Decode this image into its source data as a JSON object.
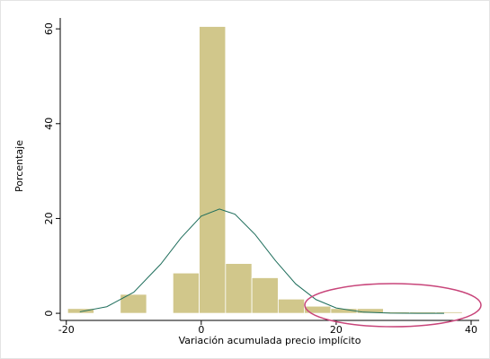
{
  "chart_data": {
    "type": "histogram",
    "xlabel": "Variación acumulada precio implícito",
    "ylabel": "Porcentaje",
    "bins": [
      -19.8,
      -15.9,
      -12.0,
      -8.1,
      -4.2,
      -0.3,
      3.6,
      7.5,
      11.4,
      15.3,
      19.2,
      23.1,
      27.0,
      30.9,
      34.8,
      38.7
    ],
    "values": [
      1,
      0,
      4,
      0,
      8.5,
      60.5,
      10.5,
      7.5,
      3,
      1.5,
      1,
      1,
      0.3,
      0.3,
      0.3
    ],
    "color": "#d1c78b",
    "curve": {
      "color": "#1f6e5c",
      "x": [
        -18,
        -14,
        -10,
        -6,
        -3,
        0,
        2.7,
        5,
        8,
        11,
        14,
        17,
        20,
        24,
        28,
        32,
        36
      ],
      "y": [
        0.31,
        1.39,
        4.44,
        10.38,
        15.9,
        20.5,
        22,
        20.9,
        16.6,
        11.1,
        6.2,
        2.9,
        1.13,
        0.24,
        0.04,
        0,
        0
      ]
    },
    "xlim": [
      -20.9,
      41.2
    ],
    "ylim": [
      -1.5,
      62.3
    ],
    "xticks": [
      -20,
      0,
      20,
      40
    ],
    "yticks": [
      0,
      20,
      40,
      60
    ]
  }
}
